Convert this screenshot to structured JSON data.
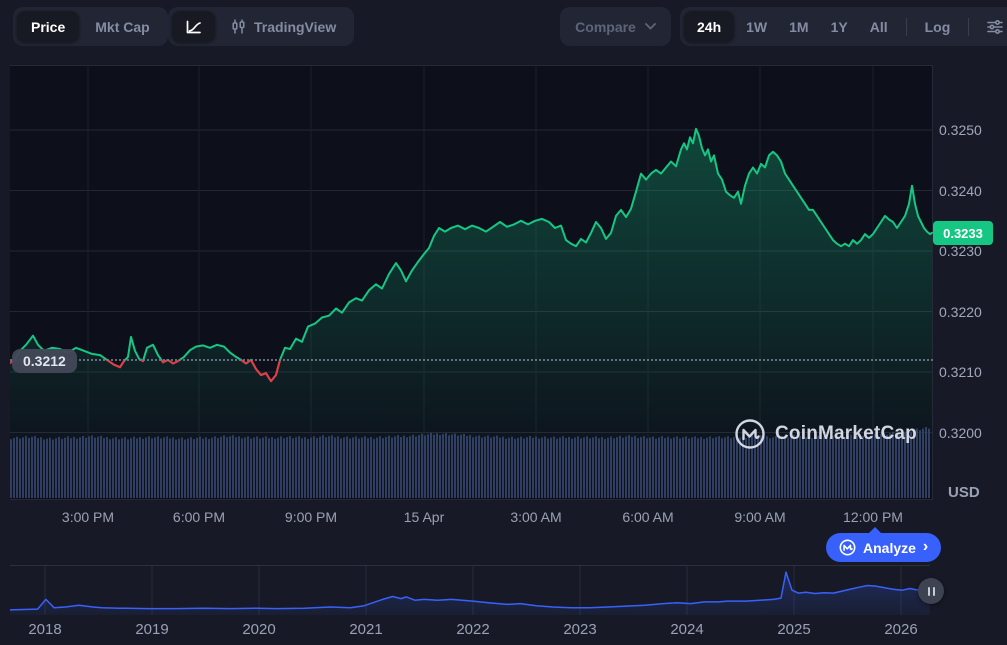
{
  "header": {
    "price_label": "Price",
    "mktcap_label": "Mkt Cap",
    "tradingview_label": "TradingView",
    "compare_label": "Compare",
    "range_24h": "24h",
    "range_1w": "1W",
    "range_1m": "1M",
    "range_1y": "1Y",
    "range_all": "All",
    "log_label": "Log"
  },
  "labels": {
    "current_price": "0.3233",
    "open_price": "0.3212",
    "unit": "USD",
    "watermark": "CoinMarketCap",
    "analyze": "Analyze",
    "analyze_chevron": "›"
  },
  "chart_data": {
    "type": "line",
    "title": "24h price chart",
    "unit": "USD",
    "current_price": 0.3233,
    "open_price": 0.3212,
    "ylim": [
      0.3196,
      0.3256
    ],
    "grid": true,
    "up_color": "#16C784",
    "down_color": "#EA3943",
    "volume_color": "#313C61",
    "navigator_color": "#3861FB",
    "badge_color": "#16C784",
    "y_tick_labels": [
      "0.3250",
      "0.3240",
      "0.3230",
      "0.3220",
      "0.3210",
      "0.3200"
    ],
    "x_tick_labels": [
      "3:00 PM",
      "6:00 PM",
      "9:00 PM",
      "15 Apr",
      "3:00 AM",
      "6:00 AM",
      "9:00 AM",
      "12:00 PM"
    ],
    "price_series": [
      [
        0,
        0.32115
      ],
      [
        4,
        0.3212
      ],
      [
        10,
        0.32135
      ],
      [
        16,
        0.32145
      ],
      [
        23,
        0.3216
      ],
      [
        28,
        0.32145
      ],
      [
        34,
        0.32135
      ],
      [
        42,
        0.3214
      ],
      [
        50,
        0.32138
      ],
      [
        58,
        0.32132
      ],
      [
        66,
        0.3214
      ],
      [
        74,
        0.32135
      ],
      [
        82,
        0.3213
      ],
      [
        90,
        0.32128
      ],
      [
        97,
        0.3212
      ],
      [
        104,
        0.32112
      ],
      [
        110,
        0.32108
      ],
      [
        114,
        0.32118
      ],
      [
        118,
        0.32125
      ],
      [
        121,
        0.32158
      ],
      [
        125,
        0.32135
      ],
      [
        129,
        0.32122
      ],
      [
        133,
        0.32118
      ],
      [
        137,
        0.3214
      ],
      [
        143,
        0.32145
      ],
      [
        148,
        0.32128
      ],
      [
        153,
        0.32116
      ],
      [
        158,
        0.3212
      ],
      [
        163,
        0.32114
      ],
      [
        168,
        0.32118
      ],
      [
        174,
        0.32125
      ],
      [
        180,
        0.32136
      ],
      [
        186,
        0.32142
      ],
      [
        193,
        0.32144
      ],
      [
        200,
        0.3214
      ],
      [
        207,
        0.32145
      ],
      [
        214,
        0.32142
      ],
      [
        220,
        0.32132
      ],
      [
        226,
        0.32125
      ],
      [
        231,
        0.3212
      ],
      [
        236,
        0.32114
      ],
      [
        241,
        0.3212
      ],
      [
        246,
        0.32105
      ],
      [
        251,
        0.32095
      ],
      [
        256,
        0.32098
      ],
      [
        261,
        0.32085
      ],
      [
        266,
        0.32095
      ],
      [
        270,
        0.3212
      ],
      [
        275,
        0.3214
      ],
      [
        280,
        0.32138
      ],
      [
        286,
        0.32155
      ],
      [
        292,
        0.3215
      ],
      [
        298,
        0.32175
      ],
      [
        305,
        0.3218
      ],
      [
        312,
        0.3219
      ],
      [
        319,
        0.32193
      ],
      [
        326,
        0.32205
      ],
      [
        332,
        0.32198
      ],
      [
        339,
        0.32215
      ],
      [
        346,
        0.32222
      ],
      [
        352,
        0.32218
      ],
      [
        359,
        0.32235
      ],
      [
        366,
        0.32245
      ],
      [
        372,
        0.32238
      ],
      [
        379,
        0.32262
      ],
      [
        386,
        0.3228
      ],
      [
        391,
        0.32268
      ],
      [
        396,
        0.3225
      ],
      [
        402,
        0.32268
      ],
      [
        408,
        0.32282
      ],
      [
        414,
        0.32295
      ],
      [
        419,
        0.32305
      ],
      [
        424,
        0.32325
      ],
      [
        429,
        0.32338
      ],
      [
        435,
        0.32332
      ],
      [
        441,
        0.32338
      ],
      [
        448,
        0.32342
      ],
      [
        455,
        0.32336
      ],
      [
        462,
        0.32342
      ],
      [
        469,
        0.32338
      ],
      [
        476,
        0.32332
      ],
      [
        483,
        0.3234
      ],
      [
        490,
        0.32348
      ],
      [
        497,
        0.3234
      ],
      [
        504,
        0.32344
      ],
      [
        511,
        0.3235
      ],
      [
        518,
        0.32344
      ],
      [
        525,
        0.3235
      ],
      [
        532,
        0.32353
      ],
      [
        539,
        0.32348
      ],
      [
        545,
        0.32338
      ],
      [
        551,
        0.32342
      ],
      [
        556,
        0.32318
      ],
      [
        561,
        0.32312
      ],
      [
        566,
        0.32308
      ],
      [
        571,
        0.3232
      ],
      [
        576,
        0.32314
      ],
      [
        581,
        0.3233
      ],
      [
        586,
        0.32348
      ],
      [
        591,
        0.32338
      ],
      [
        596,
        0.3232
      ],
      [
        601,
        0.3233
      ],
      [
        606,
        0.32358
      ],
      [
        611,
        0.32368
      ],
      [
        616,
        0.32356
      ],
      [
        621,
        0.3237
      ],
      [
        626,
        0.32398
      ],
      [
        631,
        0.32428
      ],
      [
        636,
        0.32418
      ],
      [
        641,
        0.32428
      ],
      [
        646,
        0.32434
      ],
      [
        651,
        0.32428
      ],
      [
        656,
        0.32438
      ],
      [
        661,
        0.32448
      ],
      [
        666,
        0.3244
      ],
      [
        671,
        0.32468
      ],
      [
        674,
        0.32478
      ],
      [
        677,
        0.32468
      ],
      [
        680,
        0.32488
      ],
      [
        683,
        0.32478
      ],
      [
        686,
        0.32502
      ],
      [
        689,
        0.3249
      ],
      [
        692,
        0.3247
      ],
      [
        695,
        0.32458
      ],
      [
        698,
        0.32468
      ],
      [
        701,
        0.32448
      ],
      [
        704,
        0.32458
      ],
      [
        708,
        0.32428
      ],
      [
        712,
        0.32418
      ],
      [
        716,
        0.32398
      ],
      [
        720,
        0.32392
      ],
      [
        724,
        0.32388
      ],
      [
        728,
        0.32398
      ],
      [
        731,
        0.32378
      ],
      [
        735,
        0.32408
      ],
      [
        739,
        0.32428
      ],
      [
        743,
        0.32438
      ],
      [
        747,
        0.32428
      ],
      [
        751,
        0.32444
      ],
      [
        755,
        0.32438
      ],
      [
        759,
        0.32458
      ],
      [
        763,
        0.32464
      ],
      [
        767,
        0.32458
      ],
      [
        771,
        0.32448
      ],
      [
        775,
        0.32428
      ],
      [
        779,
        0.32418
      ],
      [
        783,
        0.32408
      ],
      [
        787,
        0.32398
      ],
      [
        791,
        0.32388
      ],
      [
        795,
        0.32378
      ],
      [
        799,
        0.32368
      ],
      [
        803,
        0.32368
      ],
      [
        807,
        0.32358
      ],
      [
        811,
        0.32348
      ],
      [
        815,
        0.32338
      ],
      [
        819,
        0.32328
      ],
      [
        823,
        0.32318
      ],
      [
        827,
        0.32312
      ],
      [
        831,
        0.32308
      ],
      [
        835,
        0.32312
      ],
      [
        839,
        0.32308
      ],
      [
        843,
        0.32318
      ],
      [
        847,
        0.32312
      ],
      [
        851,
        0.32318
      ],
      [
        855,
        0.32328
      ],
      [
        859,
        0.32322
      ],
      [
        863,
        0.32328
      ],
      [
        867,
        0.32338
      ],
      [
        871,
        0.32348
      ],
      [
        875,
        0.32358
      ],
      [
        879,
        0.32352
      ],
      [
        883,
        0.32348
      ],
      [
        887,
        0.32338
      ],
      [
        891,
        0.32348
      ],
      [
        895,
        0.32358
      ],
      [
        899,
        0.32378
      ],
      [
        902,
        0.32408
      ],
      [
        905,
        0.32378
      ],
      [
        908,
        0.32358
      ],
      [
        911,
        0.32348
      ],
      [
        914,
        0.32338
      ],
      [
        917,
        0.32332
      ],
      [
        920,
        0.32328
      ],
      [
        922,
        0.3233
      ]
    ],
    "volume_envelope": [
      0.86,
      0.87,
      0.85,
      0.86,
      0.88,
      0.86,
      0.85,
      0.87,
      0.86,
      0.85,
      0.86,
      0.88,
      0.87,
      0.86,
      0.87,
      0.86,
      0.88,
      0.87,
      0.86,
      0.87,
      0.88,
      0.9,
      0.92,
      0.9,
      0.88,
      0.87,
      0.86,
      0.87,
      0.86,
      0.87,
      0.86,
      0.87,
      0.88,
      0.86,
      0.87,
      0.86,
      0.87,
      0.86,
      0.88,
      0.87,
      0.88,
      0.87,
      0.88,
      0.89,
      0.9,
      0.92,
      0.96,
      1.0
    ],
    "navigator": {
      "year_labels": [
        "2018",
        "2019",
        "2020",
        "2021",
        "2022",
        "2023",
        "2024",
        "2025",
        "2026"
      ],
      "series": [
        [
          0,
          0.05
        ],
        [
          0.03,
          0.07
        ],
        [
          0.039,
          0.3
        ],
        [
          0.048,
          0.1
        ],
        [
          0.06,
          0.12
        ],
        [
          0.075,
          0.16
        ],
        [
          0.09,
          0.12
        ],
        [
          0.1,
          0.1
        ],
        [
          0.12,
          0.09
        ],
        [
          0.15,
          0.08
        ],
        [
          0.18,
          0.08
        ],
        [
          0.21,
          0.09
        ],
        [
          0.24,
          0.08
        ],
        [
          0.268,
          0.09
        ],
        [
          0.29,
          0.08
        ],
        [
          0.32,
          0.09
        ],
        [
          0.348,
          0.12
        ],
        [
          0.37,
          0.1
        ],
        [
          0.385,
          0.15
        ],
        [
          0.405,
          0.3
        ],
        [
          0.416,
          0.37
        ],
        [
          0.425,
          0.32
        ],
        [
          0.431,
          0.36
        ],
        [
          0.44,
          0.28
        ],
        [
          0.45,
          0.3
        ],
        [
          0.465,
          0.28
        ],
        [
          0.48,
          0.3
        ],
        [
          0.503,
          0.26
        ],
        [
          0.52,
          0.22
        ],
        [
          0.54,
          0.18
        ],
        [
          0.555,
          0.2
        ],
        [
          0.572,
          0.15
        ],
        [
          0.59,
          0.12
        ],
        [
          0.61,
          0.1
        ],
        [
          0.63,
          0.1
        ],
        [
          0.65,
          0.12
        ],
        [
          0.67,
          0.14
        ],
        [
          0.69,
          0.16
        ],
        [
          0.71,
          0.2
        ],
        [
          0.725,
          0.22
        ],
        [
          0.74,
          0.2
        ],
        [
          0.755,
          0.24
        ],
        [
          0.77,
          0.24
        ],
        [
          0.78,
          0.26
        ],
        [
          0.8,
          0.26
        ],
        [
          0.815,
          0.28
        ],
        [
          0.83,
          0.3
        ],
        [
          0.838,
          0.33
        ],
        [
          0.8435,
          0.95
        ],
        [
          0.85,
          0.52
        ],
        [
          0.857,
          0.45
        ],
        [
          0.865,
          0.47
        ],
        [
          0.875,
          0.44
        ],
        [
          0.885,
          0.46
        ],
        [
          0.895,
          0.45
        ],
        [
          0.905,
          0.5
        ],
        [
          0.915,
          0.55
        ],
        [
          0.925,
          0.6
        ],
        [
          0.932,
          0.63
        ],
        [
          0.94,
          0.62
        ],
        [
          0.95,
          0.58
        ],
        [
          0.96,
          0.54
        ],
        [
          0.97,
          0.52
        ],
        [
          0.978,
          0.56
        ],
        [
          0.988,
          0.52
        ],
        [
          1,
          0.54
        ]
      ]
    }
  }
}
